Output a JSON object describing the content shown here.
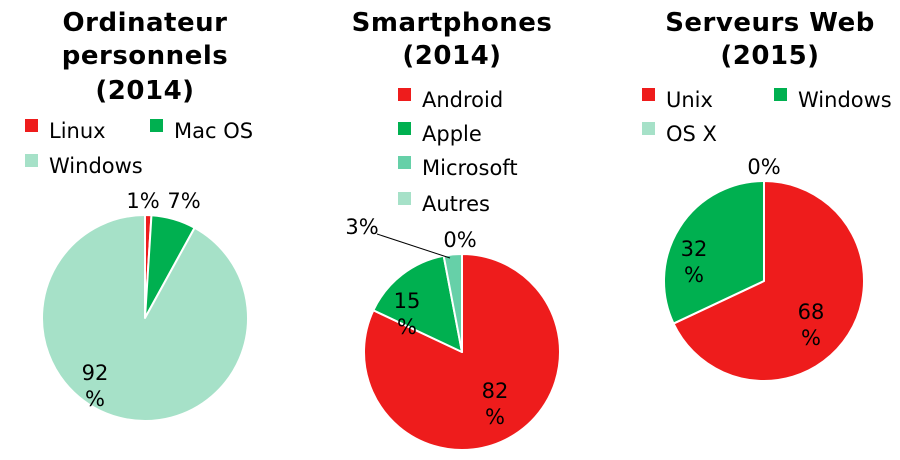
{
  "colors": {
    "red": "#ee1c1c",
    "green": "#00b050",
    "mint": "#a6e1c8",
    "teal": "#66d0a8"
  },
  "chart_data": [
    {
      "type": "pie",
      "title_lines": [
        "Ordinateur",
        "personnels",
        "(2014)"
      ],
      "categories": [
        "Linux",
        "Mac OS",
        "Windows"
      ],
      "values": [
        1,
        7,
        92
      ],
      "labels": [
        [
          "1%"
        ],
        [
          "7%"
        ],
        [
          "92",
          "%"
        ]
      ],
      "colors": [
        "#ee1c1c",
        "#00b050",
        "#a6e1c8"
      ]
    },
    {
      "type": "pie",
      "title_lines": [
        "Smartphones",
        "(2014)"
      ],
      "categories": [
        "Android",
        "Apple",
        "Microsoft",
        "Autres"
      ],
      "values": [
        82,
        15,
        3,
        0
      ],
      "labels": [
        [
          "82",
          "%"
        ],
        [
          "15",
          "%"
        ],
        [
          "3%"
        ],
        [
          "0%"
        ]
      ],
      "colors": [
        "#ee1c1c",
        "#00b050",
        "#66d0a8",
        "#a6e1c8"
      ]
    },
    {
      "type": "pie",
      "title_lines": [
        "Serveurs Web",
        "(2015)"
      ],
      "categories": [
        "Unix",
        "Windows",
        "OS X"
      ],
      "values": [
        68,
        32,
        0
      ],
      "labels": [
        [
          "68",
          "%"
        ],
        [
          "32",
          "%"
        ],
        [
          "0%"
        ]
      ],
      "colors": [
        "#ee1c1c",
        "#00b050",
        "#a6e1c8"
      ]
    }
  ]
}
